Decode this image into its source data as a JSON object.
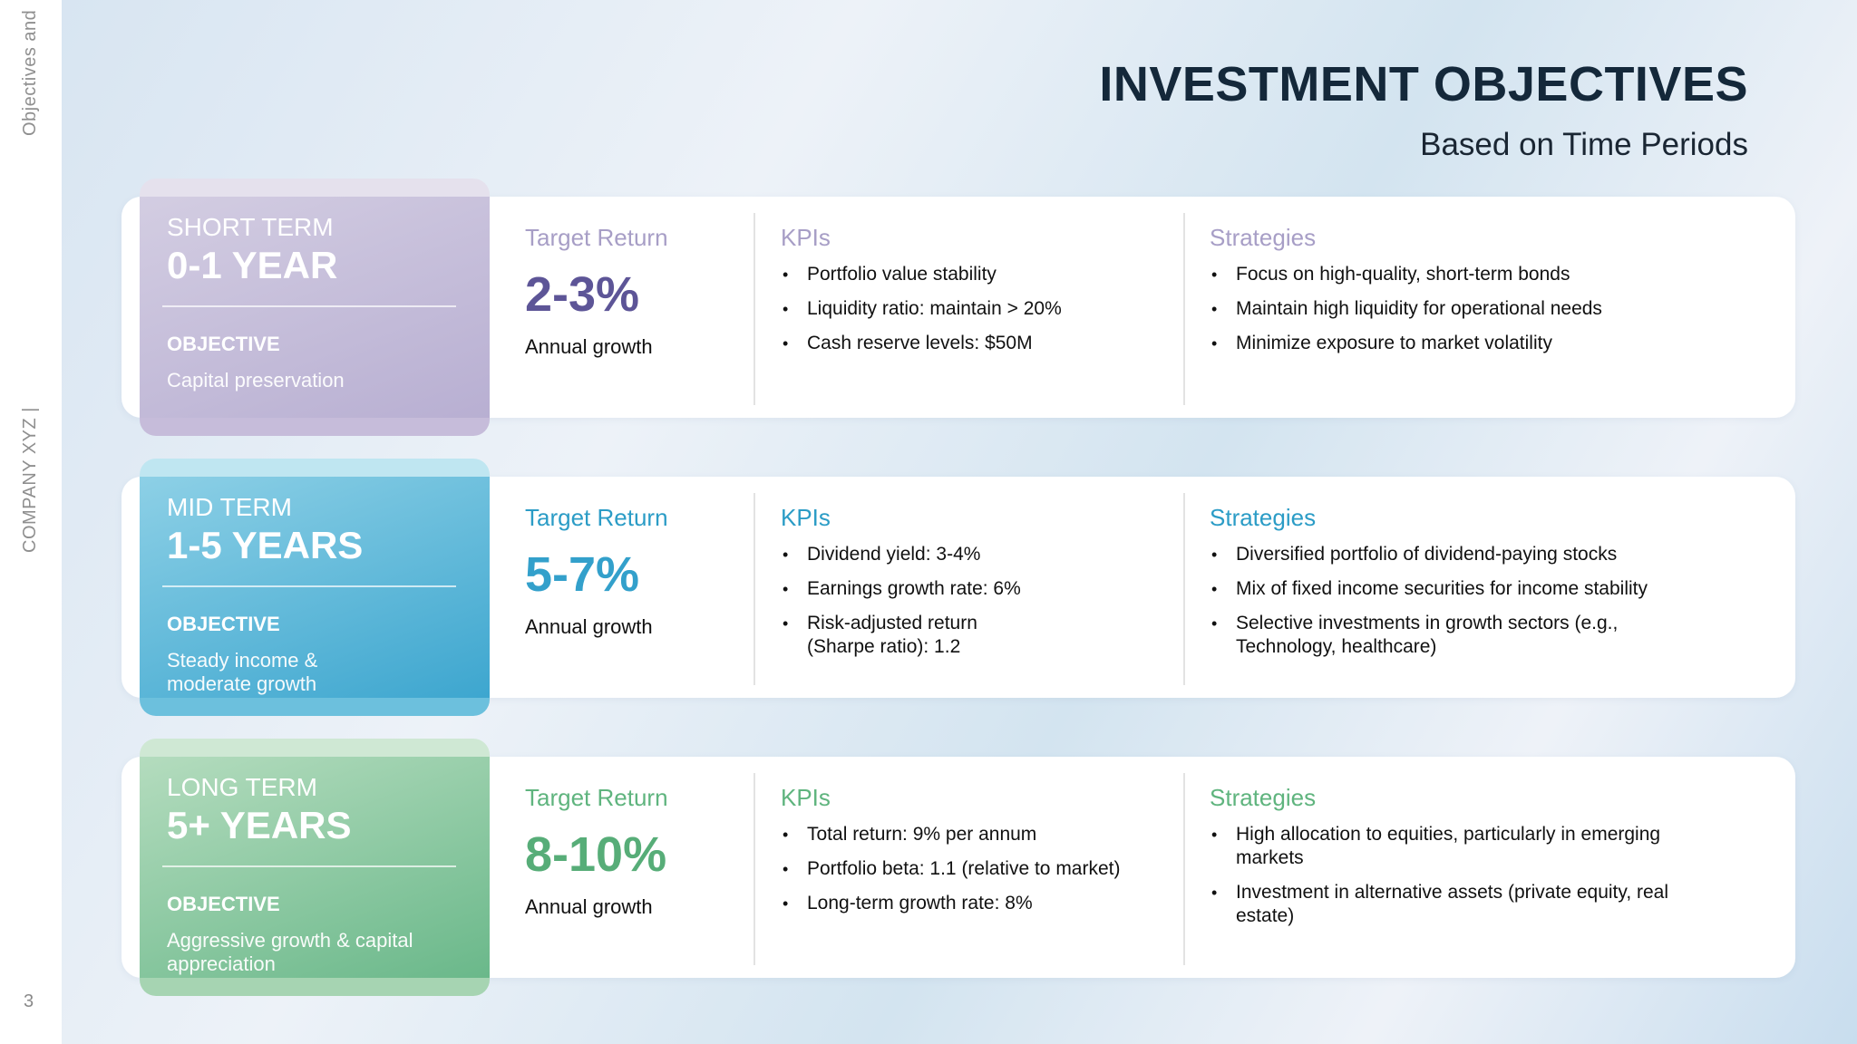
{
  "sidebar": {
    "top_text": "Objectives and",
    "company": "COMPANY XYZ |",
    "page_number": "3"
  },
  "header": {
    "title": "INVESTMENT OBJECTIVES",
    "subtitle": "Based on Time Periods"
  },
  "rows": [
    {
      "term": "SHORT TERM",
      "period": "0-1 YEAR",
      "objective_label": "OBJECTIVE",
      "objective": "Capital preservation",
      "target_label": "Target Return",
      "target_value": "2-3%",
      "target_note": "Annual growth",
      "kpi_label": "KPIs",
      "kpis": [
        "Portfolio value stability",
        "Liquidity ratio: maintain > 20%",
        "Cash reserve levels: $50M"
      ],
      "strategies_label": "Strategies",
      "strategies": [
        "Focus on high-quality, short-term bonds",
        "Maintain high liquidity for operational needs",
        "Minimize exposure to market volatility"
      ]
    },
    {
      "term": "MID TERM",
      "period": "1-5 YEARS",
      "objective_label": "OBJECTIVE",
      "objective": "Steady income & moderate growth",
      "target_label": "Target Return",
      "target_value": "5-7%",
      "target_note": "Annual growth",
      "kpi_label": "KPIs",
      "kpis": [
        "Dividend yield: 3-4%",
        "Earnings growth rate: 6%",
        "Risk-adjusted return (Sharpe ratio): 1.2"
      ],
      "strategies_label": "Strategies",
      "strategies": [
        "Diversified portfolio of dividend-paying stocks",
        "Mix of fixed income securities for income stability",
        "Selective investments in growth sectors (e.g., Technology, healthcare)"
      ]
    },
    {
      "term": "LONG TERM",
      "period": "5+ YEARS",
      "objective_label": "OBJECTIVE",
      "objective": "Aggressive growth & capital appreciation",
      "target_label": "Target Return",
      "target_value": "8-10%",
      "target_note": "Annual growth",
      "kpi_label": "KPIs",
      "kpis": [
        "Total return: 9% per annum",
        "Portfolio beta: 1.1 (relative to market)",
        "Long-term growth rate: 8%"
      ],
      "strategies_label": "Strategies",
      "strategies": [
        "High allocation to equities, particularly in emerging markets",
        "Investment in alternative assets (private equity, real estate)"
      ]
    }
  ]
}
